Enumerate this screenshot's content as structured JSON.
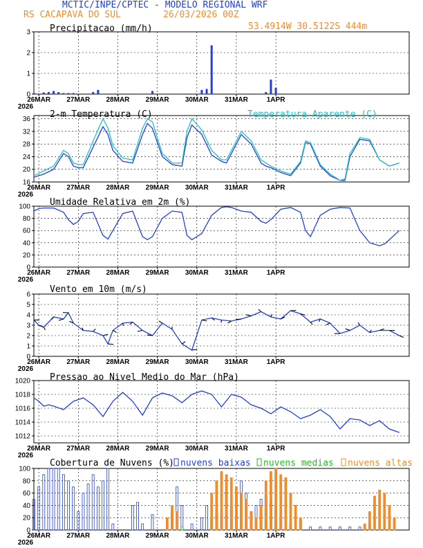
{
  "header": {
    "title": "MCTIC/INPE/CPTEC - MODELO REGIONAL WRF",
    "location": "RS CACAPAVA DO SUL",
    "run": "26/03/2026 00Z",
    "coords": "53.4914W 30.5122S 444m"
  },
  "colors": {
    "title": "#1f3fe0",
    "orange": "#f28c28",
    "cyan": "#20c4c4",
    "blue": "#1f3fe0",
    "green": "#20c020"
  },
  "x_labels": [
    "26MAR",
    "27MAR",
    "28MAR",
    "29MAR",
    "30MAR",
    "31MAR",
    "1APR"
  ],
  "x_year": "2026",
  "chart_data": [
    {
      "id": "precip",
      "type": "bar",
      "title": "Precipitacao (mm/h)",
      "ylim": [
        0,
        3
      ],
      "yticks": [
        0,
        1,
        2,
        3
      ],
      "x_hours": [
        0,
        6,
        9,
        12,
        15,
        18,
        21,
        24,
        36,
        39,
        72,
        102,
        105,
        108,
        141,
        144,
        147
      ],
      "values": [
        0.05,
        0.08,
        0.1,
        0.15,
        0.1,
        0.05,
        0.05,
        0.05,
        0.1,
        0.2,
        0.15,
        0.2,
        0.25,
        2.35,
        0.1,
        0.7,
        0.3
      ]
    },
    {
      "id": "temp",
      "type": "line",
      "title": "2-m Temperatura (C)",
      "legend": "Temperatura Aparente (C)",
      "ylim": [
        16,
        37
      ],
      "yticks": [
        16,
        20,
        24,
        28,
        32,
        36
      ],
      "series": [
        {
          "name": "Temperatura",
          "color": "#1f3fe0",
          "x": [
            0,
            6,
            12,
            18,
            21,
            24,
            27,
            30,
            36,
            42,
            45,
            48,
            54,
            60,
            66,
            69,
            72,
            78,
            84,
            90,
            93,
            96,
            102,
            108,
            114,
            117,
            120,
            126,
            132,
            138,
            141,
            144,
            150,
            156,
            162,
            165,
            168,
            174,
            180,
            186,
            189,
            192,
            198,
            204,
            210,
            213,
            216,
            222
          ],
          "y": [
            17.5,
            18.5,
            20,
            25,
            24,
            21,
            20.5,
            20.5,
            27,
            33.5,
            31,
            26,
            22.5,
            22,
            31,
            34.5,
            33,
            24,
            21.5,
            21,
            30,
            34,
            31,
            24.5,
            22.5,
            22,
            25,
            31,
            28,
            22,
            21,
            20.5,
            19,
            18,
            22,
            28.5,
            28,
            21,
            18,
            16.5,
            16.5,
            24,
            29.5,
            29,
            23,
            22,
            21,
            22
          ]
        },
        {
          "name": "Temperatura Aparente",
          "color": "#20c4c4",
          "x": [
            0,
            6,
            12,
            18,
            21,
            24,
            27,
            30,
            36,
            42,
            45,
            48,
            54,
            60,
            66,
            69,
            72,
            78,
            84,
            90,
            93,
            96,
            102,
            108,
            114,
            117,
            120,
            126,
            132,
            138,
            141,
            144,
            150,
            156,
            162,
            165,
            168,
            174,
            180,
            186,
            189,
            192,
            198,
            204,
            210,
            213,
            216,
            222
          ],
          "y": [
            18,
            19.5,
            21,
            26,
            25,
            22,
            21.5,
            21.5,
            29,
            36,
            33,
            27.5,
            23.5,
            23,
            33,
            36,
            35,
            25,
            22,
            22,
            32,
            36,
            32.5,
            26,
            23,
            23,
            26,
            32,
            29,
            23,
            22,
            21,
            19.5,
            18.5,
            22.5,
            29,
            28.5,
            21.5,
            18.5,
            16.5,
            17,
            25,
            30,
            29.5,
            23,
            22,
            21,
            22
          ]
        }
      ]
    },
    {
      "id": "rh",
      "type": "line",
      "title": "Umidade Relativa em 2m (%)",
      "ylim": [
        0,
        100
      ],
      "yticks": [
        0,
        20,
        40,
        60,
        80,
        100
      ],
      "series": [
        {
          "name": "Umidade",
          "color": "#1f3fe0",
          "x": [
            0,
            3,
            6,
            12,
            18,
            21,
            24,
            27,
            30,
            36,
            42,
            45,
            48,
            54,
            60,
            66,
            69,
            72,
            78,
            84,
            90,
            93,
            96,
            102,
            108,
            114,
            117,
            120,
            126,
            132,
            138,
            141,
            144,
            150,
            156,
            162,
            165,
            168,
            174,
            180,
            186,
            192,
            198,
            204,
            210,
            213,
            216,
            222
          ],
          "y": [
            92,
            96,
            97,
            97,
            90,
            78,
            70,
            75,
            88,
            90,
            52,
            46,
            60,
            88,
            92,
            50,
            45,
            50,
            80,
            92,
            90,
            52,
            45,
            55,
            85,
            98,
            99,
            98,
            92,
            90,
            75,
            72,
            78,
            95,
            98,
            90,
            60,
            50,
            85,
            95,
            98,
            97,
            60,
            40,
            35,
            38,
            45,
            60
          ]
        }
      ]
    },
    {
      "id": "wind",
      "type": "line",
      "title": "Vento em 10m (m/s)",
      "ylim": [
        0,
        6
      ],
      "yticks": [
        0,
        1,
        2,
        3,
        4,
        5,
        6
      ],
      "series": [
        {
          "name": "Vento",
          "color": "#1f3fe0",
          "x": [
            0,
            3,
            6,
            12,
            18,
            21,
            24,
            30,
            36,
            42,
            45,
            48,
            54,
            60,
            66,
            72,
            78,
            84,
            90,
            96,
            102,
            108,
            114,
            120,
            126,
            132,
            138,
            144,
            150,
            156,
            162,
            168,
            174,
            180,
            186,
            192,
            198,
            204,
            210,
            216,
            222
          ],
          "y": [
            3.5,
            3.0,
            2.8,
            3.8,
            3.6,
            4.2,
            3.2,
            2.5,
            2.4,
            2.0,
            1.2,
            2.5,
            3.2,
            3.3,
            2.5,
            2.0,
            3.2,
            2.6,
            1.2,
            0.6,
            3.5,
            3.7,
            3.5,
            3.4,
            3.6,
            3.9,
            4.3,
            3.8,
            3.6,
            4.4,
            4.1,
            3.3,
            3.6,
            3.2,
            2.2,
            2.5,
            3.0,
            2.3,
            2.5,
            2.5,
            2.0
          ]
        }
      ]
    },
    {
      "id": "slp",
      "type": "line",
      "title": "Pressao ao Nivel Medio do Mar (hPa)",
      "ylim": [
        1011,
        1020
      ],
      "yticks": [
        1012,
        1014,
        1016,
        1018,
        1020
      ],
      "series": [
        {
          "name": "Pressao",
          "color": "#1f3fe0",
          "x": [
            0,
            3,
            6,
            9,
            12,
            18,
            24,
            30,
            36,
            42,
            48,
            54,
            60,
            66,
            72,
            78,
            84,
            90,
            96,
            102,
            108,
            114,
            120,
            126,
            132,
            138,
            144,
            150,
            156,
            162,
            168,
            174,
            180,
            186,
            192,
            198,
            204,
            210,
            216,
            222
          ],
          "y": [
            1017.5,
            1017,
            1016.3,
            1016.5,
            1016.3,
            1015.8,
            1017,
            1017.5,
            1016.5,
            1014.8,
            1017,
            1018.3,
            1017,
            1015,
            1017.5,
            1018.2,
            1017.8,
            1016.8,
            1018,
            1018.5,
            1018,
            1016.2,
            1018,
            1017.6,
            1016.5,
            1016,
            1015.2,
            1016.2,
            1015.5,
            1014.5,
            1015,
            1015.8,
            1014.8,
            1013,
            1014.5,
            1014.3,
            1013.5,
            1014.2,
            1013,
            1012.5
          ]
        }
      ]
    },
    {
      "id": "clouds",
      "type": "bar",
      "title": "Cobertura de Nuvens (%)",
      "legend": [
        "nuvens baixas",
        "nuvens medias",
        "nuvens altas"
      ],
      "ylim": [
        0,
        100
      ],
      "yticks": [
        0,
        20,
        40,
        60,
        80,
        100
      ],
      "low": {
        "color": "#1f3fe0",
        "x": [
          0,
          3,
          6,
          9,
          12,
          15,
          18,
          21,
          24,
          27,
          30,
          33,
          36,
          39,
          42,
          45,
          48,
          60,
          63,
          66,
          72,
          84,
          87,
          90,
          96,
          102,
          105,
          108,
          111,
          114,
          117,
          120,
          123,
          126,
          129,
          132,
          135,
          138,
          141,
          144,
          147,
          150,
          156,
          162,
          168,
          174,
          180,
          186,
          192,
          198,
          204
        ],
        "y": [
          50,
          70,
          90,
          100,
          100,
          100,
          90,
          80,
          70,
          30,
          60,
          75,
          90,
          70,
          80,
          100,
          10,
          40,
          45,
          10,
          25,
          30,
          70,
          40,
          10,
          20,
          40,
          20,
          30,
          25,
          60,
          40,
          60,
          80,
          60,
          30,
          40,
          50,
          55,
          50,
          40,
          20,
          10,
          15,
          5,
          5,
          5,
          5,
          5,
          5,
          5
        ]
      },
      "mid": {
        "color": "#20c020",
        "x": [
          90,
          108,
          111,
          138,
          141,
          144,
          147
        ],
        "y": [
          5,
          20,
          30,
          25,
          35,
          20,
          10
        ]
      },
      "high": {
        "color": "#f28c28",
        "x": [
          81,
          84,
          87,
          108,
          111,
          114,
          117,
          120,
          123,
          126,
          129,
          132,
          135,
          138,
          141,
          144,
          147,
          150,
          153,
          156,
          159,
          162,
          201,
          204,
          207,
          210,
          213,
          216,
          219
        ],
        "y": [
          20,
          40,
          30,
          60,
          80,
          95,
          90,
          85,
          70,
          60,
          50,
          30,
          20,
          40,
          80,
          95,
          100,
          90,
          85,
          60,
          40,
          20,
          10,
          30,
          55,
          65,
          60,
          40,
          20
        ]
      }
    }
  ]
}
